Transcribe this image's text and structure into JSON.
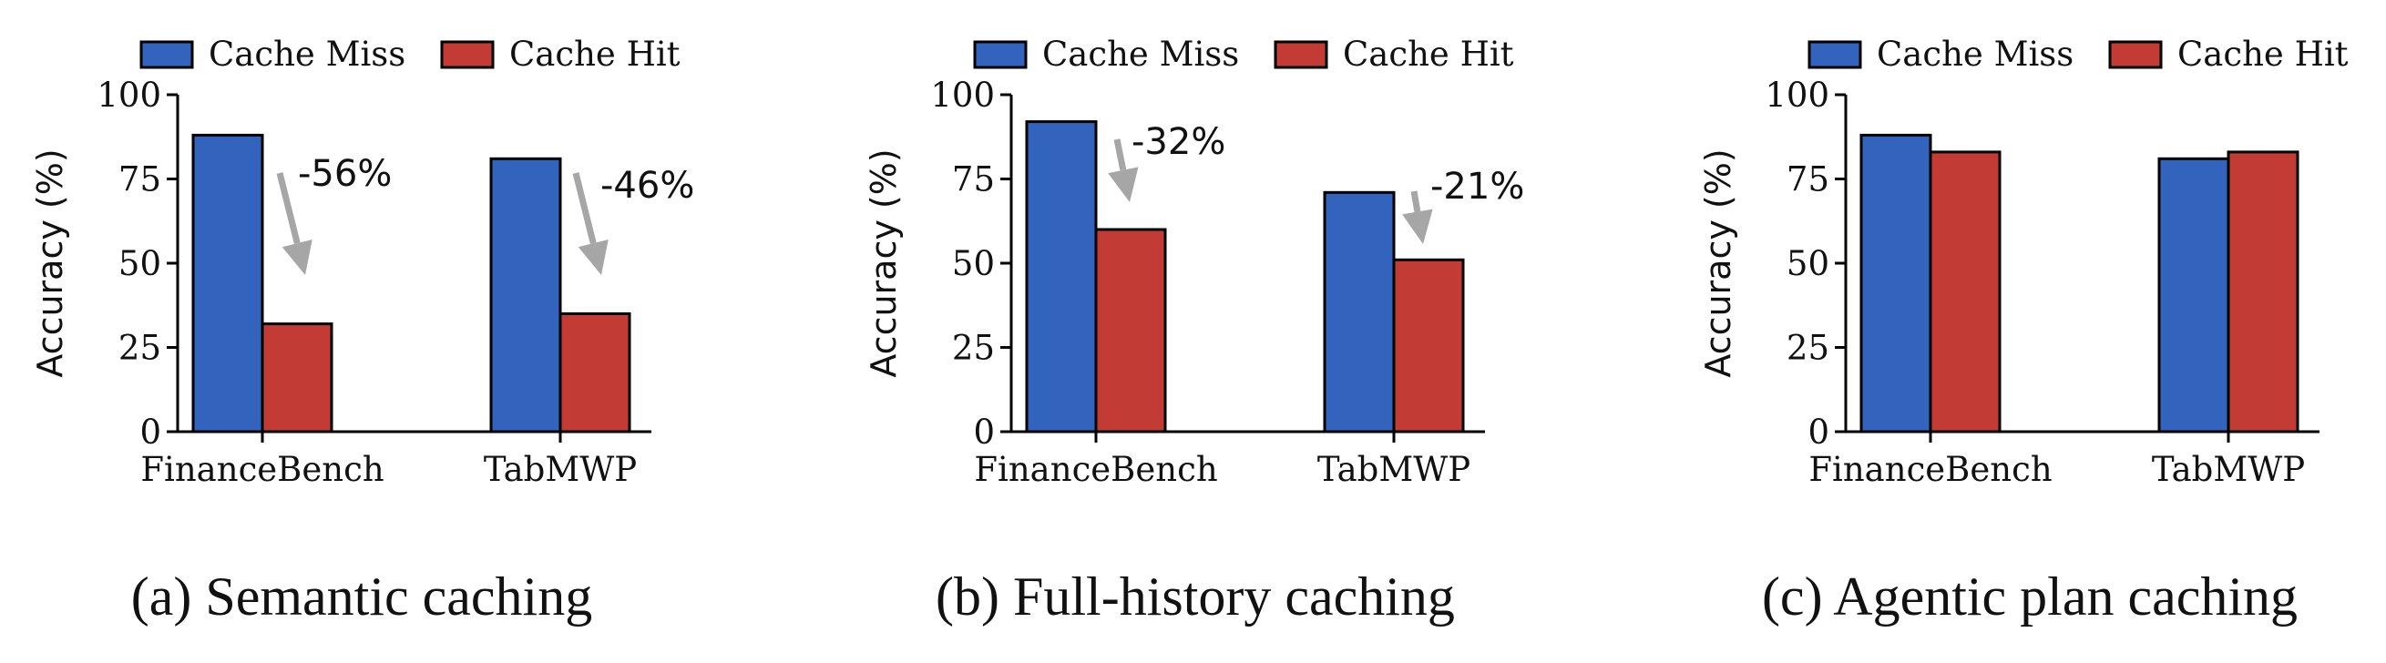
{
  "colors": {
    "cache_miss": "#3264be",
    "cache_hit": "#c23b35",
    "arrow": "#a6a6a6"
  },
  "chart_data": [
    {
      "type": "bar",
      "caption": "(a) Semantic caching",
      "categories": [
        "FinanceBench",
        "TabMWP"
      ],
      "series": [
        {
          "name": "Cache Miss",
          "values": [
            88,
            81
          ]
        },
        {
          "name": "Cache Hit",
          "values": [
            32,
            35
          ]
        }
      ],
      "xlabel": "",
      "ylabel": "Accuracy (%)",
      "ylim": [
        0,
        100
      ],
      "yticks": [
        "0",
        "25",
        "50",
        "75",
        "100"
      ],
      "legend": "top-left, horizontal",
      "grid": false,
      "annotations": [
        {
          "text": "-56%",
          "category_index": 0
        },
        {
          "text": "-46%",
          "category_index": 1
        }
      ]
    },
    {
      "type": "bar",
      "caption": "(b) Full-history caching",
      "categories": [
        "FinanceBench",
        "TabMWP"
      ],
      "series": [
        {
          "name": "Cache Miss",
          "values": [
            92,
            71
          ]
        },
        {
          "name": "Cache Hit",
          "values": [
            60,
            51
          ]
        }
      ],
      "xlabel": "",
      "ylabel": "Accuracy (%)",
      "ylim": [
        0,
        100
      ],
      "yticks": [
        "0",
        "25",
        "50",
        "75",
        "100"
      ],
      "legend": "top-left, horizontal",
      "grid": false,
      "annotations": [
        {
          "text": "-32%",
          "category_index": 0
        },
        {
          "text": "-21%",
          "category_index": 1
        }
      ]
    },
    {
      "type": "bar",
      "caption": "(c) Agentic plan caching",
      "categories": [
        "FinanceBench",
        "TabMWP"
      ],
      "series": [
        {
          "name": "Cache Miss",
          "values": [
            88,
            81
          ]
        },
        {
          "name": "Cache Hit",
          "values": [
            83,
            83
          ]
        }
      ],
      "xlabel": "",
      "ylabel": "Accuracy (%)",
      "ylim": [
        0,
        100
      ],
      "yticks": [
        "0",
        "25",
        "50",
        "75",
        "100"
      ],
      "legend": "top-left, horizontal",
      "grid": false,
      "annotations": []
    }
  ]
}
